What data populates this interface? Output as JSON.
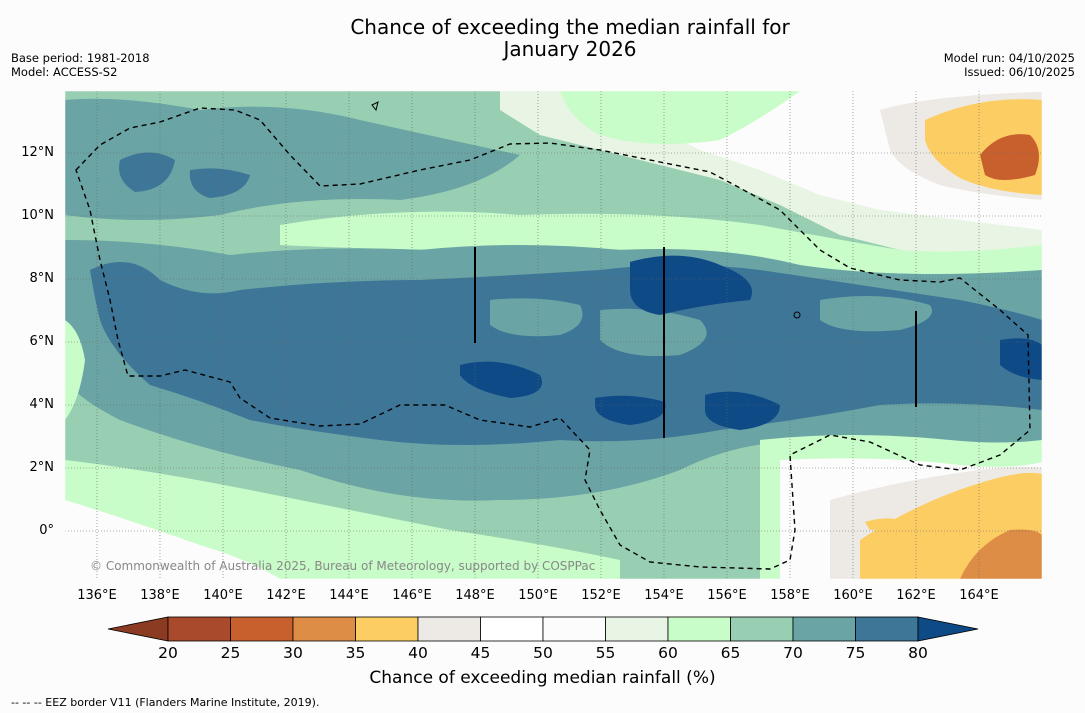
{
  "title": {
    "line1": "Chance of exceeding the median rainfall for",
    "line2": "January 2026"
  },
  "meta_left": {
    "base_period": "Base period: 1981-2018",
    "model": "Model: ACCESS-S2"
  },
  "meta_right": {
    "model_run": "Model run: 04/10/2025",
    "issued": "Issued: 06/10/2025"
  },
  "copyright": "© Commonwealth of Australia 2025, Bureau of Meteorology, supported by COSPPac",
  "map": {
    "lon_range": [
      135,
      166
    ],
    "lat_range": [
      -1.5,
      14
    ],
    "lon_ticks": [
      "136°E",
      "138°E",
      "140°E",
      "142°E",
      "144°E",
      "146°E",
      "148°E",
      "150°E",
      "152°E",
      "154°E",
      "156°E",
      "158°E",
      "160°E",
      "162°E",
      "164°E"
    ],
    "lat_ticks": [
      "12°N",
      "10°N",
      "8°N",
      "6°N",
      "4°N",
      "2°N",
      "0°"
    ]
  },
  "colorbar": {
    "title": "Chance of exceeding median rainfall (%)",
    "labels": [
      "20",
      "25",
      "30",
      "35",
      "40",
      "45",
      "50",
      "55",
      "60",
      "65",
      "70",
      "75",
      "80"
    ],
    "colors": [
      "#a94a2c",
      "#c8602e",
      "#dd8d45",
      "#fccd63",
      "#ede9e4",
      "#ffffff",
      "#fcfcfc",
      "#e8f4e4",
      "#c8fcc8",
      "#98cfb2",
      "#6aa4a4",
      "#3e7698"
    ],
    "under_color": "#8a3b22",
    "over_color": "#0e4a86"
  },
  "footer": "--  --  -- EEZ border V11 (Flanders Marine Institute, 2019)."
}
